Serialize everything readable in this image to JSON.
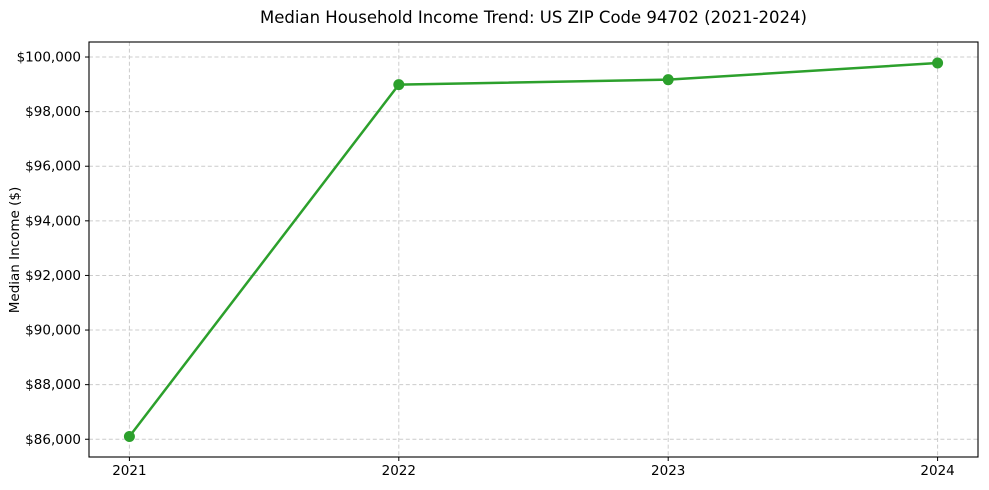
{
  "chart_data": {
    "type": "line",
    "title": "Median Household Income Trend: US ZIP Code 94702 (2021-2024)",
    "xlabel": "",
    "ylabel": "Median Income ($)",
    "series_name": "Median Household Income",
    "x": [
      2021,
      2022,
      2023,
      2024
    ],
    "x_labels": [
      "2021",
      "2022",
      "2023",
      "2024"
    ],
    "values": [
      86100,
      98990,
      99170,
      99780
    ],
    "ytick_values": [
      86000,
      88000,
      90000,
      92000,
      94000,
      96000,
      98000,
      100000
    ],
    "ytick_labels": [
      "$86,000",
      "$88,000",
      "$90,000",
      "$92,000",
      "$94,000",
      "$96,000",
      "$98,000",
      "$100,000"
    ],
    "xlim": [
      2020.85,
      2024.15
    ],
    "ylim": [
      85350,
      100550
    ],
    "grid": true,
    "grid_line_style": "dashed",
    "grid_color": "#cccccc",
    "line_color": "#2ca02c",
    "marker": "circle",
    "marker_radius": 5.5,
    "line_width": 2.5,
    "legend": false
  }
}
